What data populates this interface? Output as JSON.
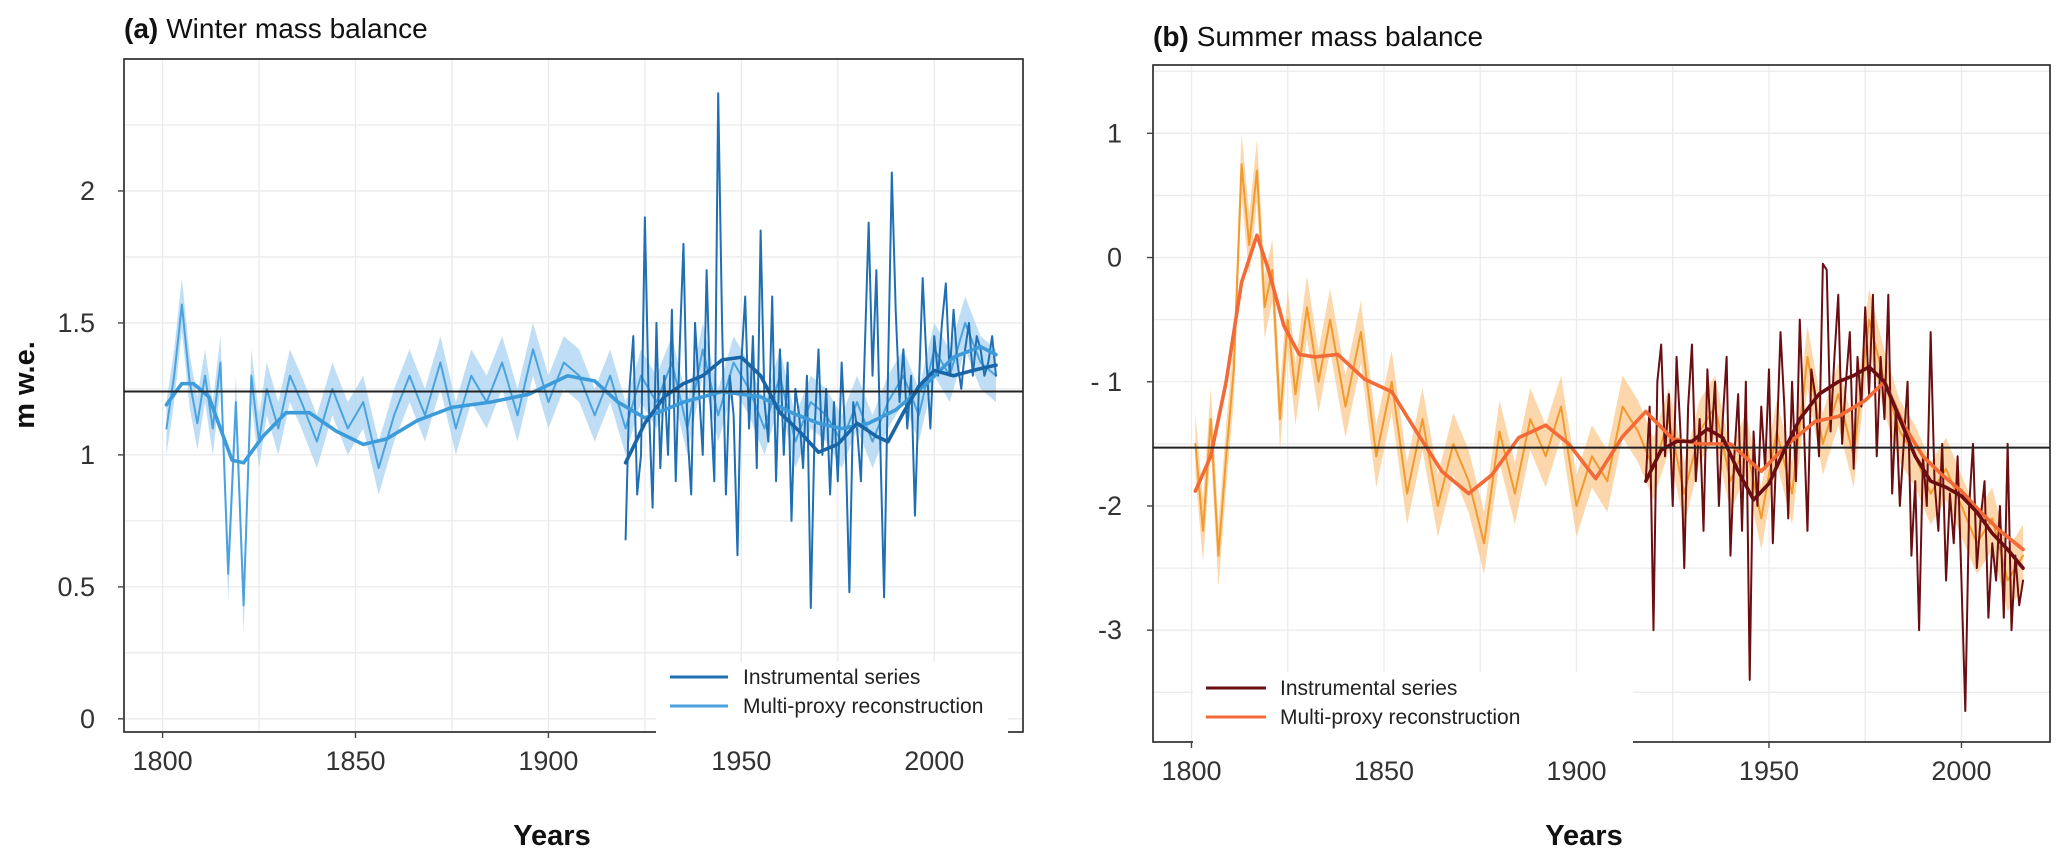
{
  "chart_data": [
    {
      "type": "line",
      "panel": "a",
      "tag": "(a)",
      "title": "Winter mass balance",
      "xlabel": "Years",
      "ylabel": "m w.e.",
      "xlim": [
        1790,
        2023
      ],
      "ylim": [
        -0.05,
        2.5
      ],
      "xticks": [
        1800,
        1850,
        1900,
        1950,
        2000
      ],
      "xtick_labels": [
        "1800",
        "1850",
        "1900",
        "1950",
        "2000"
      ],
      "yticks": [
        0,
        0.5,
        1,
        1.5,
        2
      ],
      "ytick_labels": [
        "0",
        "0.5",
        "1",
        "1.5",
        "2"
      ],
      "reference_line": 1.24,
      "legend": {
        "position": "bottom-right",
        "entries": [
          {
            "label": "Instrumental series",
            "color": "#1f6fb2"
          },
          {
            "label": "Multi-proxy reconstruction",
            "color": "#4aa3df"
          }
        ]
      },
      "colors": {
        "instrumental": "#1f6fb2",
        "reconstruction": "#4aa3df",
        "band": "#a9d3f2",
        "smooth_instrumental": "#1a65a6",
        "smooth_reconstruction": "#3d9bd9"
      },
      "band_halfwidth": 0.1,
      "series": [
        {
          "name": "Multi-proxy reconstruction",
          "x": [
            1801,
            1803,
            1805,
            1807,
            1809,
            1811,
            1813,
            1815,
            1817,
            1819,
            1821,
            1823,
            1825,
            1827,
            1830,
            1833,
            1836,
            1840,
            1844,
            1848,
            1852,
            1856,
            1860,
            1864,
            1868,
            1872,
            1876,
            1880,
            1884,
            1888,
            1892,
            1896,
            1900,
            1904,
            1908,
            1912,
            1916,
            1920,
            1924,
            1928,
            1932,
            1936,
            1940,
            1944,
            1948,
            1952,
            1956,
            1960,
            1964,
            1968,
            1972,
            1976,
            1980,
            1984,
            1988,
            1992,
            1996,
            2000,
            2004,
            2008,
            2012,
            2016
          ],
          "values": [
            1.1,
            1.3,
            1.57,
            1.28,
            1.12,
            1.3,
            1.1,
            1.35,
            0.55,
            1.2,
            0.43,
            1.3,
            1.05,
            1.25,
            1.1,
            1.3,
            1.2,
            1.05,
            1.25,
            1.1,
            1.2,
            0.95,
            1.15,
            1.3,
            1.15,
            1.35,
            1.1,
            1.3,
            1.2,
            1.35,
            1.15,
            1.4,
            1.2,
            1.35,
            1.3,
            1.15,
            1.3,
            1.1,
            1.3,
            1.2,
            1.35,
            1.1,
            1.4,
            1.15,
            1.35,
            1.25,
            1.1,
            1.3,
            1.05,
            1.2,
            1.15,
            1.05,
            1.2,
            1.05,
            1.2,
            1.3,
            1.15,
            1.4,
            1.3,
            1.5,
            1.35,
            1.3
          ]
        },
        {
          "name": "Instrumental series",
          "x": [
            1920,
            1921,
            1922,
            1923,
            1924,
            1925,
            1926,
            1927,
            1928,
            1929,
            1930,
            1931,
            1932,
            1933,
            1934,
            1935,
            1936,
            1937,
            1938,
            1939,
            1940,
            1941,
            1942,
            1943,
            1944,
            1945,
            1946,
            1947,
            1948,
            1949,
            1950,
            1951,
            1952,
            1953,
            1954,
            1955,
            1956,
            1957,
            1958,
            1959,
            1960,
            1961,
            1962,
            1963,
            1964,
            1965,
            1966,
            1967,
            1968,
            1969,
            1970,
            1971,
            1972,
            1973,
            1974,
            1975,
            1976,
            1977,
            1978,
            1979,
            1980,
            1981,
            1982,
            1983,
            1984,
            1985,
            1986,
            1987,
            1988,
            1989,
            1990,
            1991,
            1992,
            1993,
            1994,
            1995,
            1996,
            1997,
            1998,
            1999,
            2000,
            2001,
            2002,
            2003,
            2004,
            2005,
            2006,
            2007,
            2008,
            2009,
            2010,
            2011,
            2012,
            2013,
            2014,
            2015,
            2016
          ],
          "values": [
            0.68,
            1.25,
            1.45,
            0.85,
            1.0,
            1.9,
            1.2,
            0.8,
            1.5,
            0.95,
            1.3,
            1.0,
            1.55,
            0.9,
            1.4,
            1.8,
            1.1,
            0.85,
            1.5,
            1.25,
            1.0,
            1.7,
            1.2,
            0.9,
            2.37,
            1.5,
            0.85,
            1.3,
            1.15,
            0.62,
            1.35,
            1.6,
            1.1,
            1.45,
            0.95,
            1.85,
            1.2,
            1.05,
            1.6,
            0.9,
            1.4,
            1.0,
            1.35,
            0.75,
            1.25,
            1.15,
            0.95,
            1.3,
            0.42,
            1.1,
            1.4,
            1.0,
            1.25,
            0.85,
            1.2,
            0.9,
            1.35,
            1.05,
            0.48,
            1.2,
            1.1,
            0.9,
            1.4,
            1.88,
            1.3,
            1.7,
            1.05,
            0.46,
            1.3,
            2.07,
            1.55,
            1.2,
            1.4,
            1.1,
            1.3,
            0.77,
            1.25,
            1.67,
            1.35,
            1.1,
            1.45,
            1.3,
            1.5,
            1.65,
            1.3,
            1.55,
            1.35,
            1.25,
            1.4,
            1.5,
            1.3,
            1.45,
            1.4,
            1.3,
            1.35,
            1.45,
            1.3
          ]
        },
        {
          "name": "Multi-proxy reconstruction (smoothed)",
          "x": [
            1801,
            1805,
            1808,
            1812,
            1815,
            1818,
            1821,
            1826,
            1832,
            1838,
            1845,
            1852,
            1858,
            1866,
            1875,
            1885,
            1895,
            1905,
            1912,
            1918,
            1925,
            1935,
            1945,
            1955,
            1963,
            1970,
            1976,
            1983,
            1990,
            1998,
            2005,
            2012,
            2016
          ],
          "values": [
            1.19,
            1.27,
            1.27,
            1.22,
            1.1,
            0.98,
            0.97,
            1.07,
            1.16,
            1.16,
            1.09,
            1.04,
            1.06,
            1.13,
            1.18,
            1.2,
            1.23,
            1.3,
            1.28,
            1.2,
            1.14,
            1.2,
            1.24,
            1.22,
            1.16,
            1.12,
            1.1,
            1.12,
            1.17,
            1.27,
            1.37,
            1.41,
            1.38
          ]
        },
        {
          "name": "Instrumental series (smoothed)",
          "x": [
            1920,
            1925,
            1930,
            1935,
            1940,
            1945,
            1950,
            1955,
            1960,
            1965,
            1970,
            1975,
            1980,
            1985,
            1988,
            1992,
            1996,
            2000,
            2005,
            2010,
            2016
          ],
          "values": [
            0.97,
            1.12,
            1.22,
            1.27,
            1.3,
            1.36,
            1.37,
            1.3,
            1.16,
            1.09,
            1.01,
            1.04,
            1.12,
            1.07,
            1.05,
            1.16,
            1.26,
            1.32,
            1.3,
            1.32,
            1.34
          ]
        }
      ]
    },
    {
      "type": "line",
      "panel": "b",
      "tag": "(b)",
      "title": "Summer mass balance",
      "xlabel": "Years",
      "ylabel": "",
      "xlim": [
        1790,
        2023
      ],
      "ylim": [
        -3.9,
        1.55
      ],
      "xticks": [
        1800,
        1850,
        1900,
        1950,
        2000
      ],
      "xtick_labels": [
        "1800",
        "1850",
        "1900",
        "1950",
        "2000"
      ],
      "yticks": [
        -3,
        -2,
        -1,
        0,
        1
      ],
      "ytick_labels": [
        "-3",
        "-2",
        "- 1",
        "0",
        "1"
      ],
      "reference_line": -1.53,
      "legend": {
        "position": "bottom-left",
        "entries": [
          {
            "label": "Instrumental series",
            "color": "#6b0e12"
          },
          {
            "label": "Multi-proxy reconstruction",
            "color": "#f26a38"
          }
        ]
      },
      "colors": {
        "instrumental": "#6b0e12",
        "reconstruction": "#f29a2e",
        "band": "#fbc98f",
        "smooth_instrumental": "#6b0e12",
        "smooth_reconstruction": "#f26a38"
      },
      "band_halfwidth": 0.25,
      "series": [
        {
          "name": "Multi-proxy reconstruction",
          "x": [
            1801,
            1803,
            1805,
            1807,
            1809,
            1811,
            1813,
            1815,
            1817,
            1819,
            1821,
            1823,
            1825,
            1827,
            1830,
            1833,
            1836,
            1840,
            1844,
            1848,
            1852,
            1856,
            1860,
            1864,
            1868,
            1872,
            1876,
            1880,
            1884,
            1888,
            1892,
            1896,
            1900,
            1904,
            1908,
            1912,
            1916,
            1920,
            1924,
            1928,
            1932,
            1936,
            1940,
            1944,
            1948,
            1952,
            1956,
            1960,
            1964,
            1968,
            1972,
            1976,
            1980,
            1984,
            1988,
            1992,
            1996,
            2000,
            2004,
            2008,
            2012,
            2016
          ],
          "values": [
            -1.5,
            -2.2,
            -1.3,
            -2.4,
            -1.6,
            -0.9,
            0.75,
            0.1,
            0.7,
            -0.4,
            -0.1,
            -1.3,
            -0.5,
            -1.1,
            -0.4,
            -1.0,
            -0.5,
            -1.2,
            -0.6,
            -1.6,
            -1.0,
            -1.9,
            -1.3,
            -2.0,
            -1.5,
            -1.8,
            -2.3,
            -1.4,
            -1.9,
            -1.3,
            -1.6,
            -1.2,
            -2.0,
            -1.6,
            -1.8,
            -1.2,
            -1.4,
            -1.7,
            -1.3,
            -1.9,
            -1.4,
            -1.2,
            -1.8,
            -1.5,
            -2.1,
            -1.4,
            -1.9,
            -0.8,
            -1.5,
            -1.1,
            -1.6,
            -0.5,
            -1.0,
            -1.4,
            -1.6,
            -1.9,
            -1.7,
            -2.0,
            -2.3,
            -2.1,
            -2.6,
            -2.4
          ]
        },
        {
          "name": "Instrumental series",
          "x": [
            1918,
            1919,
            1920,
            1921,
            1922,
            1923,
            1924,
            1925,
            1926,
            1927,
            1928,
            1929,
            1930,
            1931,
            1932,
            1933,
            1934,
            1935,
            1936,
            1937,
            1938,
            1939,
            1940,
            1941,
            1942,
            1943,
            1944,
            1945,
            1946,
            1947,
            1948,
            1949,
            1950,
            1951,
            1952,
            1953,
            1954,
            1955,
            1956,
            1957,
            1958,
            1959,
            1960,
            1961,
            1962,
            1963,
            1964,
            1965,
            1966,
            1967,
            1968,
            1969,
            1970,
            1971,
            1972,
            1973,
            1974,
            1975,
            1976,
            1977,
            1978,
            1979,
            1980,
            1981,
            1982,
            1983,
            1984,
            1985,
            1986,
            1987,
            1988,
            1989,
            1990,
            1991,
            1992,
            1993,
            1994,
            1995,
            1996,
            1997,
            1998,
            1999,
            2000,
            2001,
            2002,
            2003,
            2004,
            2005,
            2006,
            2007,
            2008,
            2009,
            2010,
            2011,
            2012,
            2013,
            2014,
            2015,
            2016
          ],
          "values": [
            -1.8,
            -1.2,
            -3.0,
            -1.0,
            -0.7,
            -1.6,
            -1.1,
            -2.0,
            -0.8,
            -1.4,
            -2.5,
            -1.2,
            -0.7,
            -1.8,
            -1.3,
            -2.2,
            -0.9,
            -1.5,
            -1.0,
            -2.0,
            -1.3,
            -0.8,
            -2.4,
            -1.6,
            -1.1,
            -2.2,
            -1.0,
            -3.4,
            -1.4,
            -2.0,
            -1.2,
            -1.7,
            -0.9,
            -2.3,
            -1.5,
            -0.6,
            -1.2,
            -2.1,
            -1.0,
            -1.8,
            -0.5,
            -1.3,
            -2.2,
            -0.9,
            -1.1,
            -1.6,
            -0.05,
            -0.1,
            -1.4,
            -0.8,
            -0.3,
            -1.5,
            -1.0,
            -0.6,
            -1.7,
            -0.8,
            -1.2,
            -0.4,
            -1.1,
            -0.3,
            -1.6,
            -0.8,
            -1.3,
            -0.3,
            -1.9,
            -1.2,
            -2.0,
            -1.5,
            -1.0,
            -2.4,
            -1.8,
            -3.0,
            -1.6,
            -2.0,
            -0.6,
            -1.8,
            -2.2,
            -1.5,
            -2.6,
            -1.9,
            -2.3,
            -1.6,
            -2.6,
            -3.65,
            -2.0,
            -1.5,
            -2.5,
            -2.1,
            -1.8,
            -2.9,
            -2.3,
            -2.6,
            -2.0,
            -2.9,
            -1.5,
            -3.0,
            -2.4,
            -2.8,
            -2.6
          ]
        },
        {
          "name": "Multi-proxy reconstruction (smoothed)",
          "x": [
            1801,
            1805,
            1809,
            1813,
            1817,
            1820,
            1824,
            1828,
            1832,
            1838,
            1845,
            1852,
            1858,
            1865,
            1872,
            1878,
            1885,
            1892,
            1898,
            1905,
            1912,
            1918,
            1925,
            1932,
            1940,
            1948,
            1955,
            1962,
            1968,
            1975,
            1980,
            1985,
            1990,
            1995,
            2000,
            2005,
            2010,
            2016
          ],
          "values": [
            -1.88,
            -1.6,
            -1.0,
            -0.2,
            0.18,
            -0.1,
            -0.55,
            -0.78,
            -0.8,
            -0.78,
            -0.98,
            -1.08,
            -1.38,
            -1.72,
            -1.9,
            -1.75,
            -1.45,
            -1.35,
            -1.5,
            -1.78,
            -1.44,
            -1.24,
            -1.46,
            -1.5,
            -1.5,
            -1.72,
            -1.5,
            -1.32,
            -1.28,
            -1.15,
            -1.0,
            -1.35,
            -1.6,
            -1.75,
            -1.88,
            -2.05,
            -2.2,
            -2.35
          ]
        },
        {
          "name": "Instrumental series (smoothed)",
          "x": [
            1918,
            1922,
            1926,
            1930,
            1934,
            1938,
            1942,
            1946,
            1950,
            1954,
            1958,
            1963,
            1968,
            1972,
            1976,
            1980,
            1984,
            1988,
            1992,
            1996,
            2000,
            2004,
            2008,
            2012,
            2016
          ],
          "values": [
            -1.8,
            -1.55,
            -1.48,
            -1.48,
            -1.38,
            -1.45,
            -1.72,
            -1.95,
            -1.82,
            -1.55,
            -1.3,
            -1.1,
            -1.0,
            -0.95,
            -0.88,
            -1.0,
            -1.3,
            -1.6,
            -1.8,
            -1.85,
            -1.92,
            -2.05,
            -2.22,
            -2.35,
            -2.5
          ]
        }
      ]
    }
  ]
}
